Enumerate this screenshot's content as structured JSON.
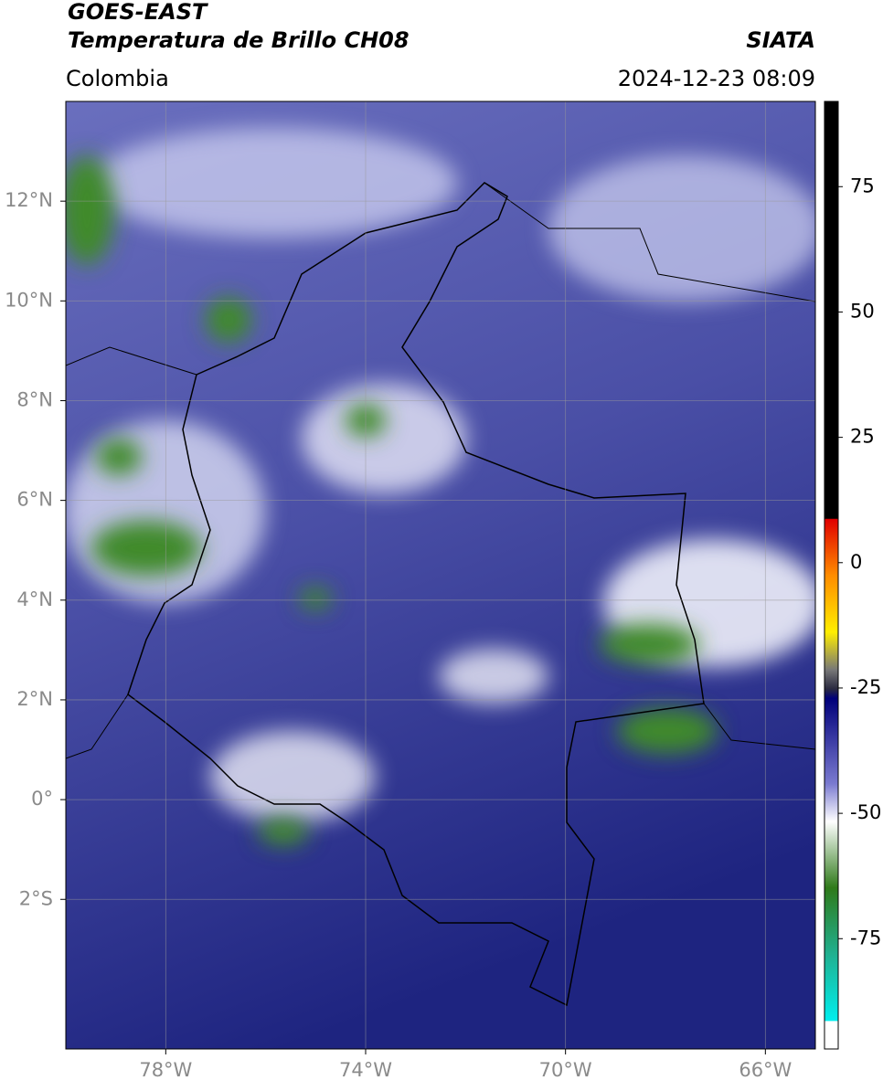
{
  "map": {
    "title": "GOES-EAST",
    "subtitle": "Temperatura de Brillo CH08",
    "source": "SIATA",
    "region": "Colombia",
    "datetime": "2024-12-23 08:09",
    "xlim": [
      -80,
      -65
    ],
    "ylim": [
      -5,
      14
    ],
    "xticks": [
      {
        "value": -78,
        "label": "78°W"
      },
      {
        "value": -74,
        "label": "74°W"
      },
      {
        "value": -70,
        "label": "70°W"
      },
      {
        "value": -66,
        "label": "66°W"
      }
    ],
    "yticks": [
      {
        "value": 12,
        "label": "12°N"
      },
      {
        "value": 10,
        "label": "10°N"
      },
      {
        "value": 8,
        "label": "8°N"
      },
      {
        "value": 6,
        "label": "6°N"
      },
      {
        "value": 4,
        "label": "4°N"
      },
      {
        "value": 2,
        "label": "2°N"
      },
      {
        "value": 0,
        "label": "0°"
      },
      {
        "value": -2,
        "label": "2°S"
      }
    ],
    "grid": true,
    "colorbar": {
      "lim": [
        -97,
        92
      ],
      "ticks": [
        75,
        50,
        25,
        0,
        -25,
        -50,
        -75
      ]
    }
  }
}
